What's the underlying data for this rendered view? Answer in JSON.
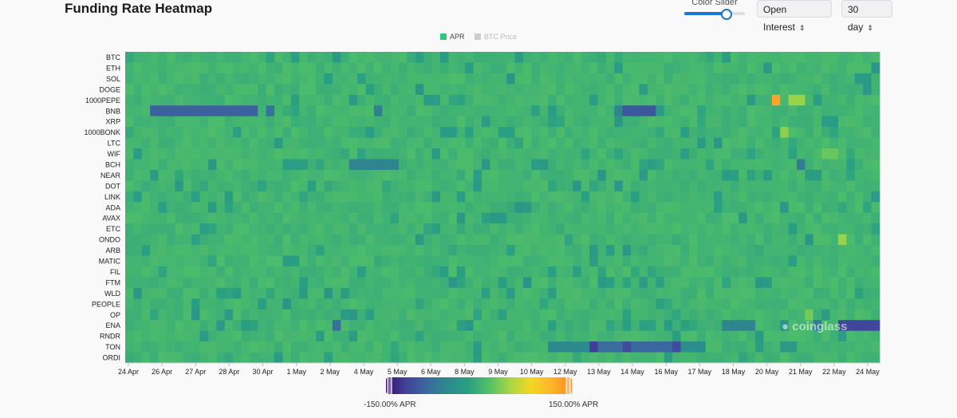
{
  "header": {
    "title": "Funding Rate Heatmap",
    "color_slider_label": "Color Slider",
    "color_slider_value": 0.7,
    "metric_select": "Open Interest",
    "range_select": "30 day"
  },
  "legend": [
    {
      "label": "APR",
      "color": "#2fc67d",
      "active": true
    },
    {
      "label": "BTC Price",
      "color": "#cccccc",
      "active": false
    }
  ],
  "watermark": "coinglass",
  "colors": {
    "accent": "#1976d2",
    "scale": [
      "#3b0f70",
      "#40449a",
      "#3a6a9e",
      "#2c8a8c",
      "#2aa083",
      "#52c067",
      "#a6d645",
      "#f3d624",
      "#fdb52a",
      "#fb8b1f"
    ]
  },
  "chart_data": {
    "type": "heatmap",
    "title": "Funding Rate Heatmap",
    "y": [
      "BTC",
      "ETH",
      "SOL",
      "DOGE",
      "1000PEPE",
      "BNB",
      "XRP",
      "1000BONK",
      "LTC",
      "WIF",
      "BCH",
      "NEAR",
      "DOT",
      "LINK",
      "ADA",
      "AVAX",
      "ETC",
      "ONDO",
      "ARB",
      "MATIC",
      "FIL",
      "FTM",
      "WLD",
      "PEOPLE",
      "OP",
      "ENA",
      "RNDR",
      "TON",
      "ORDI"
    ],
    "x_ticks": [
      "24 Apr",
      "26 Apr",
      "27 Apr",
      "28 Apr",
      "30 Apr",
      "1 May",
      "2 May",
      "4 May",
      "5 May",
      "6 May",
      "8 May",
      "9 May",
      "10 May",
      "12 May",
      "13 May",
      "14 May",
      "16 May",
      "17 May",
      "18 May",
      "20 May",
      "21 May",
      "22 May",
      "24 May"
    ],
    "columns": 91,
    "value_range": [
      -150,
      150
    ],
    "value_unit": "% APR",
    "colorbar_labels": [
      "-150.00% APR",
      "150.00% APR"
    ],
    "highlights": [
      {
        "coin": "BNB",
        "start": 3,
        "end": 16,
        "value": -90
      },
      {
        "coin": "BNB",
        "start": 17,
        "end": 18,
        "value": -75
      },
      {
        "coin": "BNB",
        "start": 30,
        "end": 31,
        "value": -60
      },
      {
        "coin": "BNB",
        "start": 59,
        "end": 60,
        "value": -55
      },
      {
        "coin": "BNB",
        "start": 60,
        "end": 64,
        "value": -100
      },
      {
        "coin": "BCH",
        "start": 27,
        "end": 33,
        "value": -55
      },
      {
        "coin": "BCH",
        "start": 81,
        "end": 82,
        "value": -65
      },
      {
        "coin": "ENA",
        "start": 25,
        "end": 26,
        "value": -80
      },
      {
        "coin": "ENA",
        "start": 72,
        "end": 76,
        "value": -55
      },
      {
        "coin": "ENA",
        "start": 83,
        "end": 84,
        "value": -65
      },
      {
        "coin": "ENA",
        "start": 86,
        "end": 91,
        "value": -115
      },
      {
        "coin": "TON",
        "start": 51,
        "end": 56,
        "value": -50
      },
      {
        "coin": "TON",
        "start": 56,
        "end": 57,
        "value": -120
      },
      {
        "coin": "TON",
        "start": 57,
        "end": 60,
        "value": -80
      },
      {
        "coin": "TON",
        "start": 60,
        "end": 61,
        "value": -110
      },
      {
        "coin": "TON",
        "start": 61,
        "end": 66,
        "value": -85
      },
      {
        "coin": "TON",
        "start": 66,
        "end": 67,
        "value": -110
      },
      {
        "coin": "TON",
        "start": 67,
        "end": 70,
        "value": -45
      },
      {
        "coin": "1000PEPE",
        "start": 78,
        "end": 79,
        "value": 130
      },
      {
        "coin": "1000PEPE",
        "start": 80,
        "end": 82,
        "value": 45
      },
      {
        "coin": "1000BONK",
        "start": 79,
        "end": 80,
        "value": 40
      },
      {
        "coin": "WIF",
        "start": 84,
        "end": 86,
        "value": 25
      },
      {
        "coin": "ONDO",
        "start": 86,
        "end": 87,
        "value": 45
      },
      {
        "coin": "OP",
        "start": 82,
        "end": 83,
        "value": 30
      }
    ]
  }
}
